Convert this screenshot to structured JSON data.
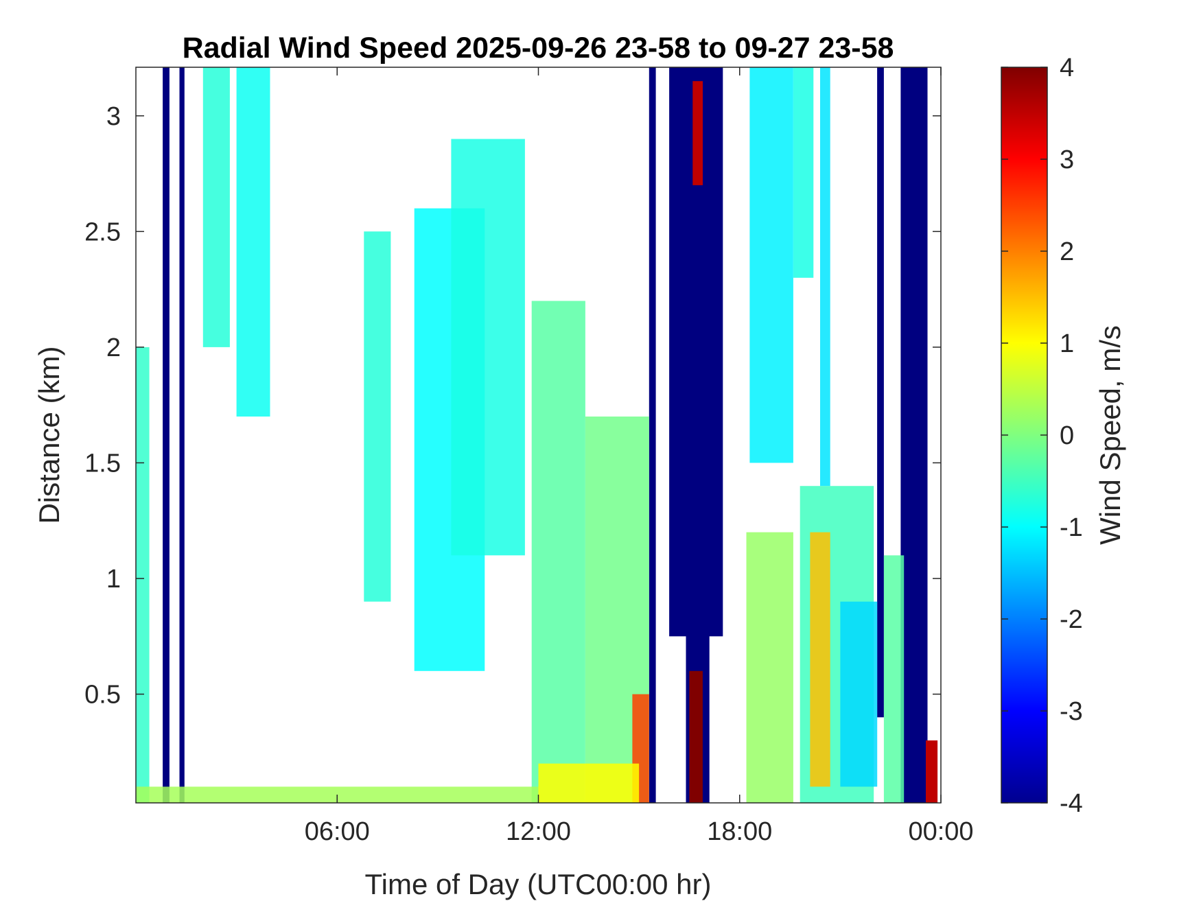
{
  "chart_data": {
    "type": "heatmap",
    "title": "Radial Wind Speed 2025-09-26 23-58 to 09-27 23-58",
    "xlabel": "Time of Day (UTC00:00 hr)",
    "ylabel": "Distance (km)",
    "colorbar_label": "Wind Speed, m/s",
    "x_unit": "hours",
    "xlim": [
      0.0,
      24.0
    ],
    "ylim": [
      0.03,
      3.21
    ],
    "clim": [
      -4,
      4
    ],
    "colormap": "jet",
    "grid": false,
    "x_ticks": [
      {
        "value": 6,
        "label": "06:00"
      },
      {
        "value": 12,
        "label": "12:00"
      },
      {
        "value": 18,
        "label": "18:00"
      },
      {
        "value": 24,
        "label": "00:00"
      }
    ],
    "y_ticks": [
      {
        "value": 0.5,
        "label": "0.5"
      },
      {
        "value": 1,
        "label": "1"
      },
      {
        "value": 1.5,
        "label": "1.5"
      },
      {
        "value": 2,
        "label": "2"
      },
      {
        "value": 2.5,
        "label": "2.5"
      },
      {
        "value": 3,
        "label": "3"
      }
    ],
    "colorbar_ticks": [
      {
        "value": 4,
        "label": "4"
      },
      {
        "value": 3,
        "label": "3"
      },
      {
        "value": 2,
        "label": "2"
      },
      {
        "value": 1,
        "label": "1"
      },
      {
        "value": 0,
        "label": "0"
      },
      {
        "value": -1,
        "label": "-1"
      },
      {
        "value": -2,
        "label": "-2"
      },
      {
        "value": -3,
        "label": "-3"
      },
      {
        "value": -4,
        "label": "-4"
      }
    ],
    "regions": [
      {
        "t0": 0.8,
        "t1": 1.0,
        "d0": 0.03,
        "d1": 3.21,
        "value": -4
      },
      {
        "t0": 1.3,
        "t1": 1.45,
        "d0": 0.03,
        "d1": 3.21,
        "value": -4
      },
      {
        "t0": 15.3,
        "t1": 15.5,
        "d0": 0.03,
        "d1": 3.21,
        "value": -4
      },
      {
        "t0": 15.9,
        "t1": 17.5,
        "d0": 0.75,
        "d1": 3.21,
        "value": -4
      },
      {
        "t0": 16.4,
        "t1": 17.1,
        "d0": 0.03,
        "d1": 0.9,
        "value": -4
      },
      {
        "t0": 22.1,
        "t1": 22.3,
        "d0": 0.4,
        "d1": 3.21,
        "value": -4
      },
      {
        "t0": 22.8,
        "t1": 23.6,
        "d0": 0.03,
        "d1": 3.21,
        "value": -4
      },
      {
        "t0": 16.5,
        "t1": 16.9,
        "d0": 0.03,
        "d1": 0.6,
        "value": 4
      },
      {
        "t0": 16.6,
        "t1": 16.9,
        "d0": 2.7,
        "d1": 3.15,
        "value": 3.5
      },
      {
        "t0": 23.55,
        "t1": 23.9,
        "d0": 0.03,
        "d1": 0.3,
        "value": 3.5
      },
      {
        "t0": 18.3,
        "t1": 19.6,
        "d0": 1.5,
        "d1": 3.21,
        "value": -1.1
      },
      {
        "t0": 19.6,
        "t1": 20.2,
        "d0": 2.3,
        "d1": 3.21,
        "value": -0.8
      },
      {
        "t0": 20.4,
        "t1": 20.7,
        "d0": 1.4,
        "d1": 3.21,
        "value": -1.2
      },
      {
        "t0": 19.8,
        "t1": 22.0,
        "d0": 0.03,
        "d1": 1.4,
        "value": -0.5
      },
      {
        "t0": 20.1,
        "t1": 20.7,
        "d0": 0.1,
        "d1": 1.2,
        "value": 1.5
      },
      {
        "t0": 21.0,
        "t1": 22.1,
        "d0": 0.1,
        "d1": 0.9,
        "value": -1.3
      },
      {
        "t0": 22.3,
        "t1": 22.9,
        "d0": 0.03,
        "d1": 1.1,
        "value": -0.3
      },
      {
        "t0": 18.2,
        "t1": 19.6,
        "d0": 0.03,
        "d1": 1.2,
        "value": 0.2
      },
      {
        "t0": 3.0,
        "t1": 4.0,
        "d0": 1.7,
        "d1": 3.21,
        "value": -0.9
      },
      {
        "t0": 2.0,
        "t1": 2.8,
        "d0": 2.0,
        "d1": 3.21,
        "value": -0.7
      },
      {
        "t0": 0.0,
        "t1": 0.4,
        "d0": 0.03,
        "d1": 2.0,
        "value": -0.6
      },
      {
        "t0": 6.8,
        "t1": 7.6,
        "d0": 0.9,
        "d1": 2.5,
        "value": -0.7
      },
      {
        "t0": 8.3,
        "t1": 10.4,
        "d0": 0.6,
        "d1": 2.6,
        "value": -1.0
      },
      {
        "t0": 9.4,
        "t1": 11.6,
        "d0": 1.1,
        "d1": 2.9,
        "value": -0.8
      },
      {
        "t0": 11.8,
        "t1": 13.4,
        "d0": 0.03,
        "d1": 2.2,
        "value": -0.3
      },
      {
        "t0": 13.4,
        "t1": 15.3,
        "d0": 0.03,
        "d1": 1.7,
        "value": -0.1
      },
      {
        "t0": 14.8,
        "t1": 15.3,
        "d0": 0.03,
        "d1": 0.5,
        "value": 2.5
      },
      {
        "t0": 0.0,
        "t1": 12.0,
        "d0": 0.03,
        "d1": 0.1,
        "value": 0.3
      },
      {
        "t0": 12.0,
        "t1": 15.0,
        "d0": 0.03,
        "d1": 0.2,
        "value": 1.0
      }
    ]
  }
}
